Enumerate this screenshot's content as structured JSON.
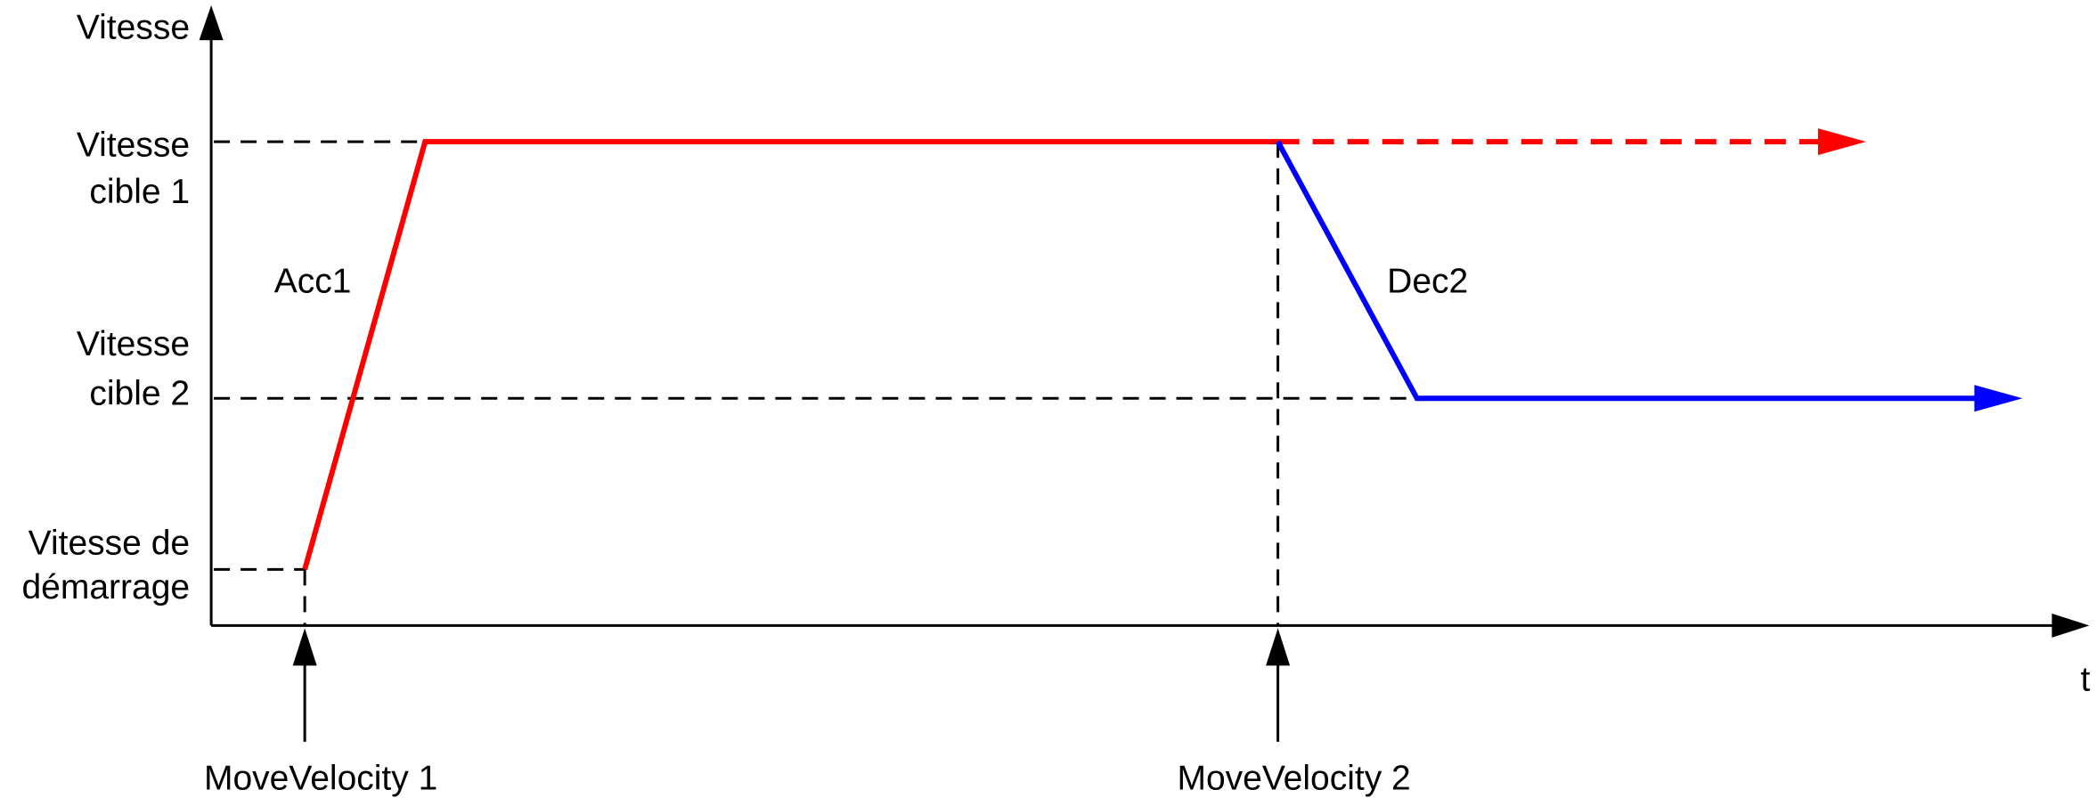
{
  "y_axis_label": "Vitesse",
  "x_axis_label": "t",
  "levels": [
    {
      "lines": [
        "Vitesse",
        "cible 1"
      ]
    },
    {
      "lines": [
        "Vitesse",
        "cible 2"
      ]
    },
    {
      "lines": [
        "Vitesse de",
        "démarrage"
      ]
    }
  ],
  "annotations": [
    "Acc1",
    "Dec2"
  ],
  "events": [
    "MoveVelocity 1",
    "MoveVelocity 2"
  ]
}
